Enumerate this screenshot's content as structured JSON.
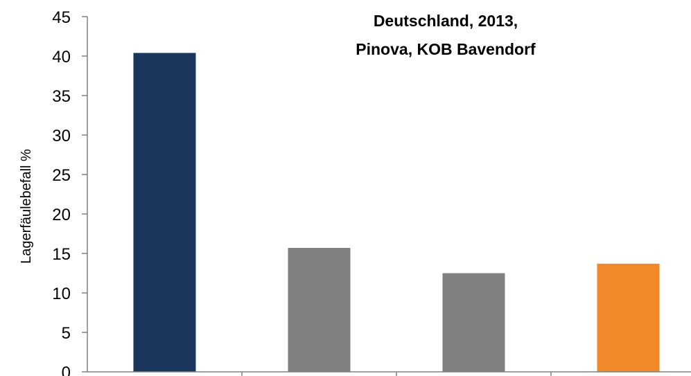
{
  "chart_data": {
    "type": "bar",
    "title_lines": [
      "Deutschland, 2013,",
      "Pinova, KOB Bavendorf"
    ],
    "ylabel": "Lagerfäulebefall %",
    "xlabel": "",
    "categories": [
      "",
      "",
      "",
      ""
    ],
    "values": [
      40.4,
      15.7,
      12.5,
      13.7
    ],
    "bar_colors": [
      "#1b365d",
      "#808080",
      "#808080",
      "#f0892a"
    ],
    "ylim": [
      0,
      45
    ],
    "yticks": [
      0,
      5,
      10,
      15,
      20,
      25,
      30,
      35,
      40,
      45
    ],
    "grid": false,
    "legend": false
  }
}
